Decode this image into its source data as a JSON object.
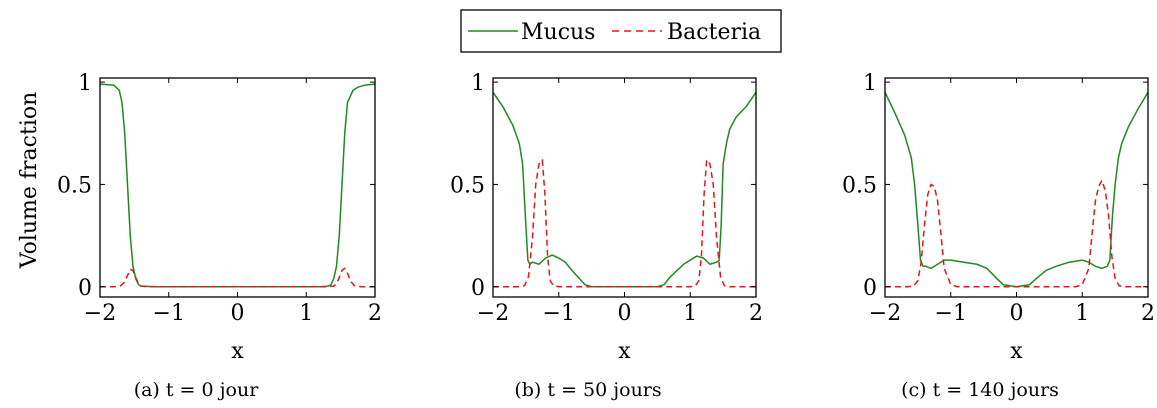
{
  "legend": [
    {
      "name": "Mucus",
      "color": "#1f8a1f",
      "dash": "solid"
    },
    {
      "name": "Bacteria",
      "color": "#e8141b",
      "dash": "dashed"
    }
  ],
  "ylabel": "Volume fraction",
  "chart_data": [
    {
      "type": "line",
      "caption": "(a) t = 0 jour",
      "xlabel": "x",
      "xlim": [
        -2,
        2
      ],
      "ylim": [
        -0.05,
        1.02
      ],
      "xticks": [
        -2,
        -1,
        0,
        1,
        2
      ],
      "yticks": [
        0,
        0.5,
        1
      ],
      "xtick_labels": [
        "−2",
        "−1",
        "0",
        "1",
        "2"
      ],
      "ytick_labels": [
        "0",
        "0.5",
        "1"
      ],
      "series": [
        {
          "name": "Mucus",
          "x": [
            -2,
            -1.8,
            -1.72,
            -1.68,
            -1.64,
            -1.6,
            -1.56,
            -1.52,
            -1.48,
            -1.44,
            -1.4,
            -1.2,
            1.2,
            1.32,
            1.36,
            1.4,
            1.44,
            1.48,
            1.52,
            1.56,
            1.6,
            1.68,
            1.75,
            1.85,
            2
          ],
          "y": [
            0.99,
            0.985,
            0.96,
            0.9,
            0.75,
            0.5,
            0.25,
            0.1,
            0.04,
            0.01,
            0.003,
            0,
            0,
            0.003,
            0.01,
            0.04,
            0.1,
            0.25,
            0.5,
            0.75,
            0.9,
            0.96,
            0.975,
            0.985,
            0.99
          ]
        },
        {
          "name": "Bacteria",
          "x": [
            -2,
            -1.8,
            -1.7,
            -1.65,
            -1.6,
            -1.56,
            -1.52,
            -1.48,
            -1.44,
            -1.4,
            -1.3,
            1.3,
            1.4,
            1.44,
            1.48,
            1.52,
            1.56,
            1.6,
            1.65,
            1.7,
            1.8,
            2
          ],
          "y": [
            0,
            0,
            0.005,
            0.02,
            0.055,
            0.085,
            0.08,
            0.045,
            0.015,
            0.003,
            0,
            0,
            0.003,
            0.015,
            0.045,
            0.08,
            0.09,
            0.065,
            0.025,
            0.005,
            0,
            0
          ]
        }
      ]
    },
    {
      "type": "line",
      "caption": "(b) t = 50 jours",
      "xlabel": "x",
      "xlim": [
        -2,
        2
      ],
      "ylim": [
        -0.05,
        1.02
      ],
      "xticks": [
        -2,
        -1,
        0,
        1,
        2
      ],
      "yticks": [
        0,
        0.5,
        1
      ],
      "xtick_labels": [
        "−2",
        "−1",
        "0",
        "1",
        "2"
      ],
      "ytick_labels": [
        "0",
        "0.5",
        "1"
      ],
      "series": [
        {
          "name": "Mucus",
          "x": [
            -2,
            -1.85,
            -1.7,
            -1.6,
            -1.55,
            -1.5,
            -1.47,
            -1.44,
            -1.4,
            -1.3,
            -1.2,
            -1.1,
            -1.0,
            -0.9,
            -0.8,
            -0.6,
            -0.5,
            0.5,
            0.6,
            0.7,
            0.8,
            0.9,
            1.0,
            1.1,
            1.2,
            1.3,
            1.4,
            1.44,
            1.47,
            1.5,
            1.55,
            1.6,
            1.7,
            1.85,
            2
          ],
          "y": [
            0.95,
            0.88,
            0.79,
            0.7,
            0.6,
            0.3,
            0.13,
            0.11,
            0.12,
            0.11,
            0.14,
            0.155,
            0.14,
            0.12,
            0.08,
            0.01,
            0,
            0,
            0.01,
            0.05,
            0.08,
            0.11,
            0.13,
            0.15,
            0.14,
            0.11,
            0.12,
            0.13,
            0.3,
            0.6,
            0.7,
            0.77,
            0.83,
            0.88,
            0.95
          ]
        },
        {
          "name": "Bacteria",
          "x": [
            -2,
            -1.6,
            -1.52,
            -1.46,
            -1.4,
            -1.35,
            -1.3,
            -1.25,
            -1.21,
            -1.17,
            -1.13,
            -1.08,
            -1.0,
            1.0,
            1.08,
            1.13,
            1.17,
            1.21,
            1.25,
            1.3,
            1.35,
            1.4,
            1.46,
            1.52,
            1.6,
            2
          ],
          "y": [
            0,
            0,
            0.005,
            0.05,
            0.24,
            0.5,
            0.6,
            0.62,
            0.45,
            0.15,
            0.03,
            0.005,
            0,
            0,
            0.005,
            0.03,
            0.15,
            0.45,
            0.62,
            0.6,
            0.5,
            0.24,
            0.05,
            0.005,
            0,
            0
          ]
        }
      ]
    },
    {
      "type": "line",
      "caption": "(c) t = 140 jours",
      "xlabel": "x",
      "xlim": [
        -2,
        2
      ],
      "ylim": [
        -0.05,
        1.02
      ],
      "xticks": [
        -2,
        -1,
        0,
        1,
        2
      ],
      "yticks": [
        0,
        0.5,
        1
      ],
      "xtick_labels": [
        "−2",
        "−1",
        "0",
        "1",
        "2"
      ],
      "ytick_labels": [
        "0",
        "0.5",
        "1"
      ],
      "series": [
        {
          "name": "Mucus",
          "x": [
            -2,
            -1.85,
            -1.7,
            -1.6,
            -1.55,
            -1.5,
            -1.46,
            -1.42,
            -1.38,
            -1.3,
            -1.2,
            -1.1,
            -1.0,
            -0.8,
            -0.6,
            -0.45,
            -0.3,
            -0.2,
            0,
            0.2,
            0.3,
            0.45,
            0.6,
            0.8,
            1.0,
            1.1,
            1.2,
            1.3,
            1.38,
            1.42,
            1.46,
            1.5,
            1.55,
            1.6,
            1.7,
            1.85,
            2
          ],
          "y": [
            0.95,
            0.85,
            0.74,
            0.63,
            0.5,
            0.3,
            0.13,
            0.1,
            0.1,
            0.09,
            0.11,
            0.13,
            0.13,
            0.12,
            0.11,
            0.09,
            0.04,
            0.01,
            0,
            0.01,
            0.04,
            0.08,
            0.1,
            0.12,
            0.13,
            0.12,
            0.1,
            0.09,
            0.1,
            0.13,
            0.35,
            0.5,
            0.63,
            0.7,
            0.78,
            0.87,
            0.95
          ]
        },
        {
          "name": "Bacteria",
          "x": [
            -2,
            -1.65,
            -1.56,
            -1.5,
            -1.45,
            -1.4,
            -1.35,
            -1.3,
            -1.25,
            -1.2,
            -1.15,
            -1.1,
            -1.0,
            -0.9,
            0.9,
            1.0,
            1.1,
            1.15,
            1.2,
            1.25,
            1.3,
            1.35,
            1.4,
            1.45,
            1.5,
            1.56,
            1.65,
            2
          ],
          "y": [
            0,
            0,
            0.005,
            0.03,
            0.12,
            0.3,
            0.45,
            0.5,
            0.49,
            0.42,
            0.26,
            0.09,
            0.01,
            0,
            0,
            0.01,
            0.09,
            0.26,
            0.42,
            0.49,
            0.52,
            0.47,
            0.35,
            0.15,
            0.04,
            0.005,
            0,
            0
          ]
        }
      ]
    }
  ]
}
